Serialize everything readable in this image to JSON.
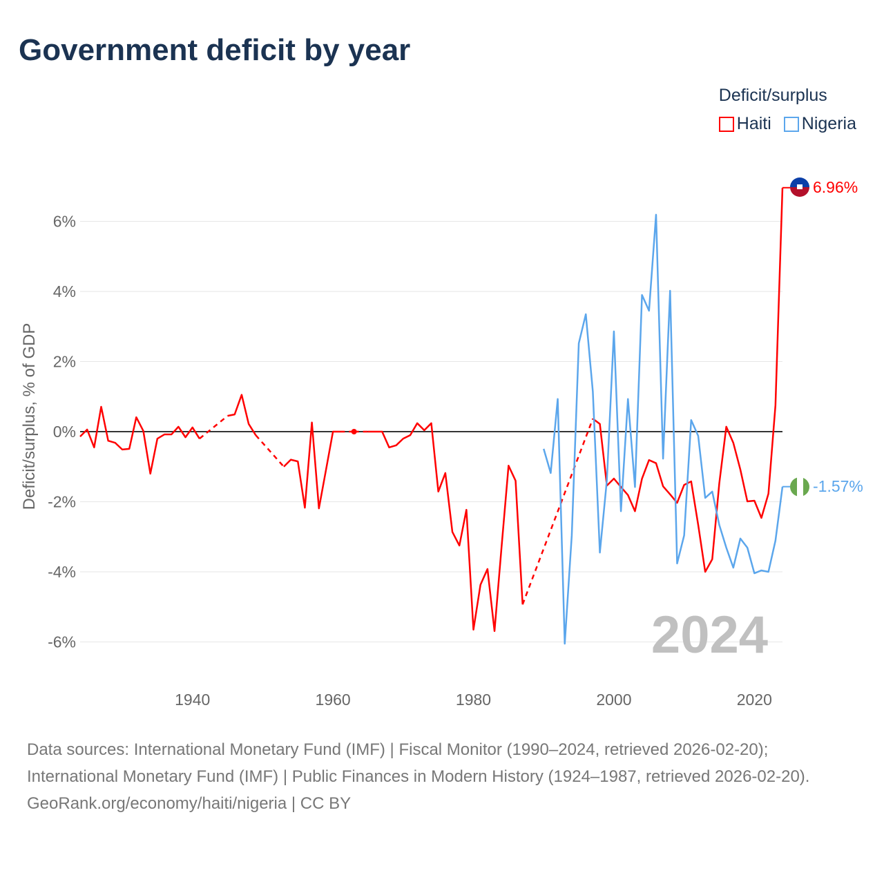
{
  "title": "Government deficit by year",
  "legend": {
    "title": "Deficit/surplus",
    "items": [
      {
        "name": "Haiti",
        "color": "#ff0000"
      },
      {
        "name": "Nigeria",
        "color": "#5ba6ec"
      }
    ]
  },
  "footer": {
    "sources": "Data sources: International Monetary Fund (IMF) | Fiscal Monitor (1990–2024, retrieved 2026-02-20); International Monetary Fund (IMF) | Public Finances in Modern History (1924–1987, retrieved 2026-02-20).",
    "credit": "GeoRank.org/economy/haiti/nigeria | CC BY"
  },
  "chart_data": {
    "type": "line",
    "title": "Government deficit by year",
    "ylabel": "Deficit/surplus, % of GDP",
    "xlabel": "",
    "xlim": [
      1924,
      2024
    ],
    "ylim": [
      -7,
      7
    ],
    "xticks": [
      1940,
      1960,
      1980,
      2000,
      2020
    ],
    "yticks": [
      -6,
      -4,
      -2,
      0,
      2,
      4,
      6
    ],
    "ytick_labels": [
      "-6%",
      "-4%",
      "-2%",
      "0%",
      "2%",
      "4%",
      "6%"
    ],
    "year_label": "2024",
    "grid": true,
    "legend_position": "top-right",
    "series": [
      {
        "name": "Haiti",
        "color": "#ff0000",
        "end_label": "6.96%",
        "start_year": 1924,
        "values": [
          -0.14,
          0.06,
          -0.45,
          0.71,
          -0.26,
          -0.32,
          -0.51,
          -0.49,
          0.41,
          0.02,
          -1.2,
          -0.2,
          -0.08,
          -0.08,
          0.14,
          -0.16,
          0.12,
          -0.2,
          null,
          null,
          null,
          0.45,
          0.49,
          1.05,
          0.22,
          -0.1,
          null,
          null,
          null,
          -1.0,
          -0.8,
          -0.85,
          -2.17,
          0.26,
          -2.19,
          -1.1,
          0,
          0,
          null,
          0,
          null,
          0,
          0,
          0,
          -0.45,
          -0.39,
          -0.2,
          -0.1,
          0.24,
          0.04,
          0.24,
          -1.71,
          -1.18,
          -2.86,
          -3.25,
          -2.23,
          -5.65,
          -4.37,
          -3.92,
          -5.69,
          -3.3,
          -0.97,
          -1.4,
          -4.93,
          null,
          null,
          null,
          null,
          null,
          null,
          null,
          null,
          null,
          0.37,
          0.22,
          -1.54,
          -1.34,
          -1.58,
          -1.81,
          -2.27,
          -1.34,
          -0.81,
          -0.9,
          -1.56,
          -1.79,
          -2.03,
          -1.52,
          -1.42,
          -2.66,
          -4.0,
          -3.64,
          -1.48,
          0.14,
          -0.32,
          -1.08,
          -1.99,
          -1.97,
          -2.46,
          -1.77,
          0.75,
          6.96
        ]
      },
      {
        "name": "Nigeria",
        "color": "#5ba6ec",
        "end_label": "-1.57%",
        "start_year": 1990,
        "values": [
          -0.49,
          -1.18,
          0.93,
          -6.05,
          -2.96,
          2.52,
          3.35,
          1.14,
          -3.45,
          -1.38,
          2.86,
          -2.27,
          0.93,
          -1.58,
          3.9,
          3.45,
          6.19,
          -0.77,
          4.02,
          -3.76,
          -2.96,
          0.33,
          -0.12,
          -1.89,
          -1.71,
          -2.66,
          -3.31,
          -3.88,
          -3.05,
          -3.31,
          -4.04,
          -3.96,
          -4.0,
          -3.11,
          -1.57
        ]
      }
    ]
  }
}
